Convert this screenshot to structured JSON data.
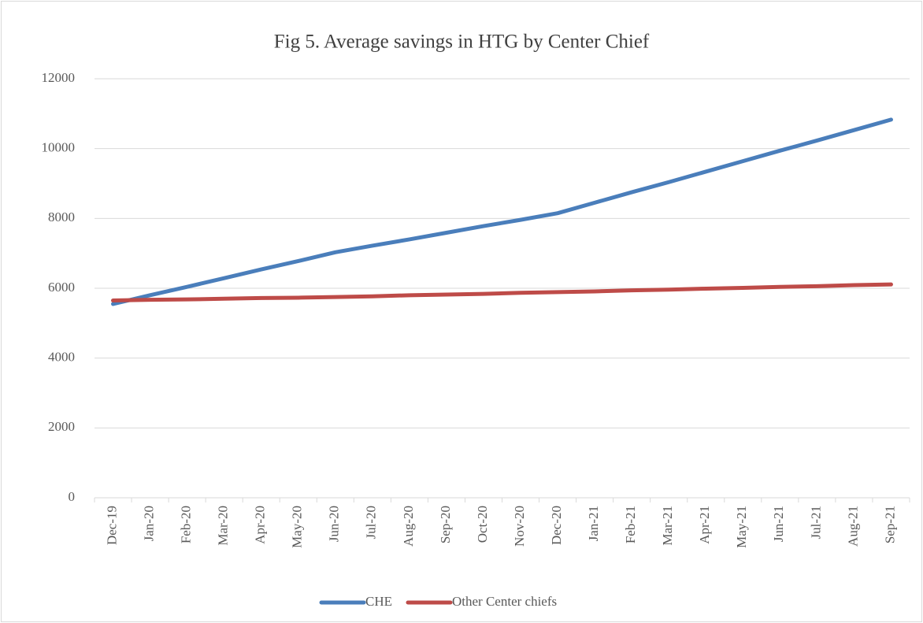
{
  "chart_data": {
    "type": "line",
    "title": "Fig 5. Average savings in HTG by Center Chief",
    "categories": [
      "Dec-19",
      "Jan-20",
      "Feb-20",
      "Mar-20",
      "Apr-20",
      "May-20",
      "Jun-20",
      "Jul-20",
      "Aug-20",
      "Sep-20",
      "Oct-20",
      "Nov-20",
      "Dec-20",
      "Jan-21",
      "Feb-21",
      "Mar-21",
      "Apr-21",
      "May-21",
      "Jun-21",
      "Jul-21",
      "Aug-21",
      "Sep-21"
    ],
    "series": [
      {
        "name": "CHE",
        "color": "#4a7ebb",
        "values": [
          5550,
          5800,
          6040,
          6290,
          6540,
          6780,
          7030,
          7220,
          7400,
          7590,
          7780,
          7960,
          8150,
          8450,
          8750,
          9040,
          9340,
          9640,
          9940,
          10230,
          10530,
          10830
        ]
      },
      {
        "name": "Other Center chiefs",
        "color": "#be4b48",
        "values": [
          5650,
          5670,
          5680,
          5700,
          5720,
          5730,
          5750,
          5770,
          5800,
          5820,
          5840,
          5870,
          5890,
          5910,
          5940,
          5960,
          5990,
          6010,
          6040,
          6060,
          6090,
          6110
        ]
      }
    ],
    "ylim": [
      0,
      12000
    ],
    "yticks": [
      0,
      2000,
      4000,
      6000,
      8000,
      10000,
      12000
    ],
    "grid": true,
    "legend": "bottom"
  }
}
